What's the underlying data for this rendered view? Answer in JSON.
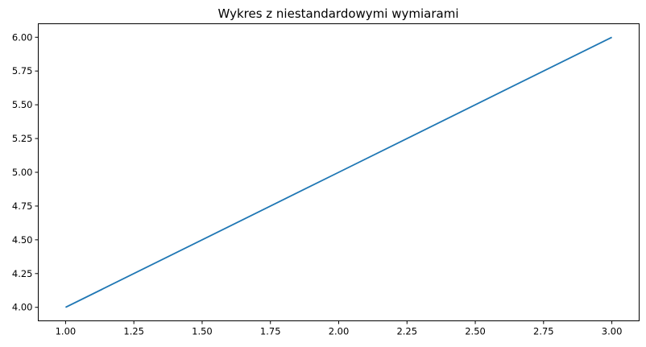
{
  "chart_data": {
    "type": "line",
    "title": "Wykres z niestandardowymi wymiarami",
    "xlabel": "",
    "ylabel": "",
    "x": [
      1,
      2,
      3
    ],
    "series": [
      {
        "values": [
          4,
          5,
          6
        ],
        "color": "#1f77b4"
      }
    ],
    "xlim": [
      0.9,
      3.1
    ],
    "ylim": [
      3.9,
      6.1
    ],
    "x_ticks": [
      1.0,
      1.25,
      1.5,
      1.75,
      2.0,
      2.25,
      2.5,
      2.75,
      3.0
    ],
    "x_tick_labels": [
      "1.00",
      "1.25",
      "1.50",
      "1.75",
      "2.00",
      "2.25",
      "2.50",
      "2.75",
      "3.00"
    ],
    "y_ticks": [
      4.0,
      4.25,
      4.5,
      4.75,
      5.0,
      5.25,
      5.5,
      5.75,
      6.0
    ],
    "y_tick_labels": [
      "4.00",
      "4.25",
      "4.50",
      "4.75",
      "5.00",
      "5.25",
      "5.50",
      "5.75",
      "6.00"
    ],
    "grid": false,
    "legend": "none"
  }
}
